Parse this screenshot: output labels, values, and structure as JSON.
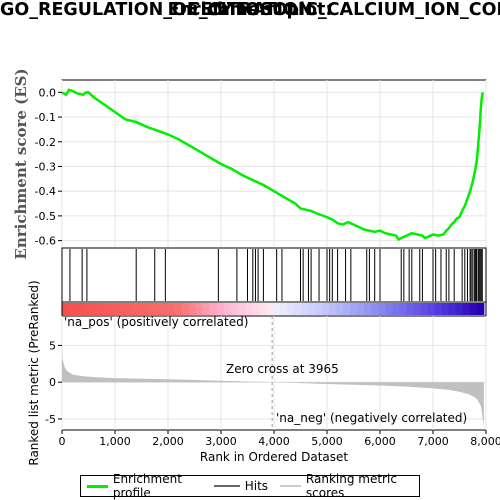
{
  "title_lines": [
    "Enrichment plot:",
    "GO_REGULATION_OF_CYTOSOLIC_CALCIUM_ION_CON",
    "CENTRATION"
  ],
  "colors": {
    "enrichment": "#00ee00",
    "hits": "#000000",
    "metric": "#c0c0c0",
    "positive_label": "#ff0000",
    "negative_label": "#0000ff"
  },
  "chart_data": {
    "type": "line",
    "x_range": [
      0,
      8000
    ],
    "x_ticks": [
      "0",
      "1,000",
      "2,000",
      "3,000",
      "4,000",
      "5,000",
      "6,000",
      "7,000",
      "8,000"
    ],
    "xlabel": "Rank in Ordered Dataset",
    "es_panel": {
      "ylabel": "Enrichment score (ES)",
      "ylim": [
        -0.63,
        0.05
      ],
      "y_ticks": [
        "0.0",
        "-0.1",
        "-0.2",
        "-0.3",
        "-0.4",
        "-0.5",
        "-0.6"
      ],
      "series": [
        {
          "name": "Enrichment profile",
          "x": [
            0,
            80,
            130,
            200,
            300,
            400,
            450,
            500,
            600,
            800,
            1000,
            1200,
            1400,
            1600,
            1800,
            2000,
            2200,
            2400,
            2600,
            2800,
            3000,
            3200,
            3400,
            3600,
            3800,
            4000,
            4200,
            4400,
            4500,
            4700,
            4800,
            5000,
            5100,
            5200,
            5300,
            5400,
            5500,
            5600,
            5700,
            5800,
            5900,
            6000,
            6100,
            6200,
            6300,
            6350,
            6400,
            6500,
            6600,
            6700,
            6800,
            6850,
            6900,
            7000,
            7100,
            7200,
            7250,
            7300,
            7350,
            7400,
            7450,
            7500,
            7550,
            7600,
            7650,
            7700,
            7750,
            7800,
            7830,
            7850,
            7870,
            7890,
            7900,
            7920,
            7940
          ],
          "y": [
            0.0,
            -0.01,
            0.01,
            0.005,
            -0.005,
            -0.01,
            0.0,
            0.0,
            -0.02,
            -0.05,
            -0.08,
            -0.11,
            -0.12,
            -0.14,
            -0.155,
            -0.17,
            -0.19,
            -0.215,
            -0.24,
            -0.265,
            -0.29,
            -0.31,
            -0.335,
            -0.355,
            -0.375,
            -0.4,
            -0.425,
            -0.45,
            -0.47,
            -0.48,
            -0.49,
            -0.505,
            -0.515,
            -0.53,
            -0.535,
            -0.525,
            -0.535,
            -0.545,
            -0.555,
            -0.56,
            -0.565,
            -0.56,
            -0.57,
            -0.575,
            -0.58,
            -0.595,
            -0.59,
            -0.58,
            -0.57,
            -0.575,
            -0.58,
            -0.59,
            -0.585,
            -0.575,
            -0.58,
            -0.575,
            -0.56,
            -0.55,
            -0.535,
            -0.525,
            -0.51,
            -0.505,
            -0.48,
            -0.46,
            -0.43,
            -0.4,
            -0.36,
            -0.31,
            -0.27,
            -0.22,
            -0.17,
            -0.11,
            -0.07,
            -0.02,
            0.0
          ]
        }
      ]
    },
    "hits": [
      150,
      380,
      470,
      1400,
      1750,
      1950,
      2950,
      3300,
      3500,
      3600,
      3650,
      3700,
      3800,
      4050,
      4150,
      4500,
      4550,
      4650,
      4700,
      4850,
      5000,
      5050,
      5100,
      5200,
      5350,
      5450,
      5750,
      5800,
      5900,
      6000,
      6400,
      6450,
      6550,
      6600,
      6750,
      6800,
      7000,
      7050,
      7150,
      7250,
      7300,
      7400,
      7550,
      7600,
      7650,
      7700,
      7720,
      7750,
      7780,
      7800,
      7820,
      7850,
      7870,
      7890,
      7910,
      7930
    ],
    "metric_panel": {
      "ylabel": "Ranked list metric (PreRanked)",
      "ylim": [
        -6.5,
        9
      ],
      "y_ticks": [
        "5",
        "0",
        "-5"
      ],
      "x": [
        0,
        10,
        50,
        100,
        200,
        400,
        700,
        1000,
        2000,
        3000,
        3965,
        5000,
        6000,
        6500,
        7000,
        7300,
        7500,
        7700,
        7800,
        7850,
        7900,
        7920,
        7940,
        7960
      ],
      "y": [
        5.4,
        3.2,
        2.0,
        1.5,
        1.05,
        0.8,
        0.65,
        0.55,
        0.4,
        0.2,
        0.0,
        -0.25,
        -0.45,
        -0.6,
        -0.85,
        -1.05,
        -1.3,
        -1.7,
        -2.1,
        -2.5,
        -3.2,
        -4.0,
        -5.0,
        -6.0
      ]
    },
    "annotations": {
      "positive": "'na_pos' (positively correlated)",
      "negative": "'na_neg' (negatively correlated)",
      "zero_cross": "Zero cross at 3965",
      "zero_cross_x": 3965
    }
  },
  "legend": {
    "enrichment": "Enrichment profile",
    "hits": "Hits",
    "metric": "Ranking metric scores"
  }
}
